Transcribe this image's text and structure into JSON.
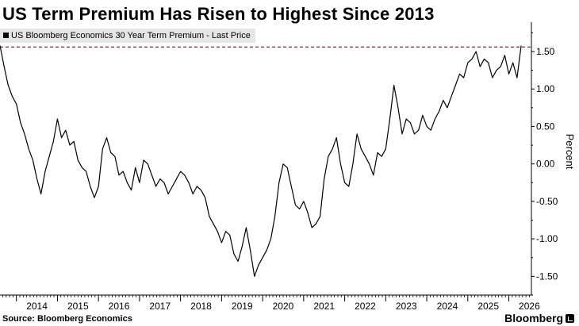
{
  "header": {
    "title": "US Term Premium Has Risen to Highest Since 2013"
  },
  "footer": {
    "source": "Source: Bloomberg Economics",
    "brand": "Bloomberg"
  },
  "colors": {
    "line": "#000000",
    "reference_line": "#c0103c",
    "legend_background": "#e6e6e6"
  },
  "chart_data": {
    "type": "line",
    "title": "US Term Premium Has Risen to Highest Since 2013",
    "ylabel": "Percent",
    "xlabel": "",
    "ylim": [
      -1.75,
      1.87
    ],
    "xlim": [
      2013.6,
      2026.55
    ],
    "x_ticks": [
      "2014",
      "2015",
      "2016",
      "2017",
      "2018",
      "2019",
      "2020",
      "2021",
      "2022",
      "2023",
      "2024",
      "2025",
      "2026"
    ],
    "y_ticks": [
      -1.5,
      -1.0,
      -0.5,
      0.0,
      0.5,
      1.0,
      1.5
    ],
    "y_tick_labels": [
      "-1.50",
      "-1.00",
      "-0.50",
      "0.00",
      "0.50",
      "1.00",
      "1.50"
    ],
    "reference_line": {
      "value": 1.56,
      "style": "dashed"
    },
    "legend": "top-left",
    "grid": false,
    "series": [
      {
        "name": "US Bloomberg Economics 30 Year Term Premium - Last Price",
        "x": [
          2013.6,
          2013.7,
          2013.8,
          2013.9,
          2014.0,
          2014.1,
          2014.2,
          2014.3,
          2014.4,
          2014.5,
          2014.6,
          2014.7,
          2014.8,
          2014.9,
          2015.0,
          2015.1,
          2015.2,
          2015.3,
          2015.4,
          2015.5,
          2015.6,
          2015.7,
          2015.8,
          2015.9,
          2016.0,
          2016.1,
          2016.2,
          2016.3,
          2016.4,
          2016.5,
          2016.6,
          2016.7,
          2016.8,
          2016.9,
          2017.0,
          2017.1,
          2017.2,
          2017.3,
          2017.4,
          2017.5,
          2017.6,
          2017.7,
          2017.8,
          2017.9,
          2018.0,
          2018.1,
          2018.2,
          2018.3,
          2018.4,
          2018.5,
          2018.6,
          2018.7,
          2018.8,
          2018.9,
          2019.0,
          2019.1,
          2019.2,
          2019.3,
          2019.4,
          2019.5,
          2019.6,
          2019.7,
          2019.8,
          2019.9,
          2020.0,
          2020.1,
          2020.2,
          2020.3,
          2020.4,
          2020.5,
          2020.6,
          2020.7,
          2020.8,
          2020.9,
          2021.0,
          2021.1,
          2021.2,
          2021.3,
          2021.4,
          2021.5,
          2021.6,
          2021.7,
          2021.8,
          2021.9,
          2022.0,
          2022.1,
          2022.2,
          2022.3,
          2022.4,
          2022.5,
          2022.6,
          2022.7,
          2022.8,
          2022.9,
          2023.0,
          2023.1,
          2023.2,
          2023.3,
          2023.4,
          2023.5,
          2023.6,
          2023.7,
          2023.8,
          2023.9,
          2024.0,
          2024.1,
          2024.2,
          2024.3,
          2024.4,
          2024.5,
          2024.6,
          2024.7,
          2024.8,
          2024.9,
          2025.0,
          2025.1,
          2025.2,
          2025.3,
          2025.4,
          2025.5,
          2025.6,
          2025.7,
          2025.8,
          2025.9,
          2026.0,
          2026.1,
          2026.2,
          2026.3
        ],
        "values": [
          1.58,
          1.3,
          1.05,
          0.9,
          0.8,
          0.55,
          0.4,
          0.2,
          0.05,
          -0.2,
          -0.4,
          -0.1,
          0.1,
          0.3,
          0.6,
          0.35,
          0.45,
          0.25,
          0.3,
          0.05,
          -0.05,
          -0.1,
          -0.3,
          -0.45,
          -0.3,
          0.2,
          0.35,
          0.15,
          0.1,
          -0.15,
          -0.1,
          -0.25,
          -0.35,
          -0.05,
          -0.25,
          0.05,
          0.0,
          -0.15,
          -0.3,
          -0.2,
          -0.25,
          -0.4,
          -0.3,
          -0.2,
          -0.1,
          -0.15,
          -0.25,
          -0.4,
          -0.3,
          -0.35,
          -0.45,
          -0.7,
          -0.8,
          -0.9,
          -1.05,
          -0.9,
          -0.95,
          -1.2,
          -1.3,
          -1.1,
          -0.85,
          -1.15,
          -1.5,
          -1.35,
          -1.25,
          -1.15,
          -1.0,
          -0.7,
          -0.25,
          0.0,
          -0.05,
          -0.3,
          -0.55,
          -0.6,
          -0.5,
          -0.65,
          -0.85,
          -0.8,
          -0.7,
          -0.2,
          0.1,
          0.2,
          0.35,
          0.0,
          -0.25,
          -0.3,
          0.0,
          0.4,
          0.2,
          0.1,
          0.0,
          -0.15,
          0.15,
          0.1,
          0.2,
          0.6,
          1.05,
          0.75,
          0.4,
          0.6,
          0.55,
          0.4,
          0.45,
          0.65,
          0.5,
          0.45,
          0.6,
          0.7,
          0.85,
          0.75,
          0.9,
          1.05,
          1.2,
          1.15,
          1.35,
          1.4,
          1.5,
          1.3,
          1.4,
          1.35,
          1.15,
          1.25,
          1.3,
          1.45,
          1.2,
          1.35,
          1.15,
          1.58
        ]
      }
    ]
  }
}
